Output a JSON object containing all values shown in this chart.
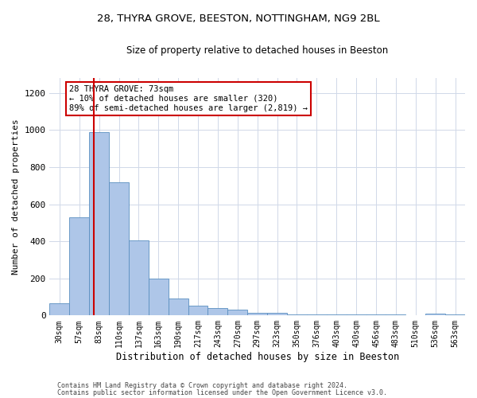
{
  "title1": "28, THYRA GROVE, BEESTON, NOTTINGHAM, NG9 2BL",
  "title2": "Size of property relative to detached houses in Beeston",
  "xlabel": "Distribution of detached houses by size in Beeston",
  "ylabel": "Number of detached properties",
  "categories": [
    "30sqm",
    "57sqm",
    "83sqm",
    "110sqm",
    "137sqm",
    "163sqm",
    "190sqm",
    "217sqm",
    "243sqm",
    "270sqm",
    "297sqm",
    "323sqm",
    "350sqm",
    "376sqm",
    "403sqm",
    "430sqm",
    "456sqm",
    "483sqm",
    "510sqm",
    "536sqm",
    "563sqm"
  ],
  "values": [
    65,
    530,
    990,
    720,
    405,
    197,
    90,
    55,
    38,
    30,
    15,
    15,
    5,
    5,
    5,
    5,
    5,
    5,
    0,
    10,
    5
  ],
  "bar_color": "#aec6e8",
  "bar_edge_color": "#5a8fc0",
  "vline_color": "#cc0000",
  "vline_x_index": 1.73,
  "annotation_text": "28 THYRA GROVE: 73sqm\n← 10% of detached houses are smaller (320)\n89% of semi-detached houses are larger (2,819) →",
  "annotation_box_color": "#ffffff",
  "annotation_box_edge": "#cc0000",
  "ylim": [
    0,
    1280
  ],
  "yticks": [
    0,
    200,
    400,
    600,
    800,
    1000,
    1200
  ],
  "footer1": "Contains HM Land Registry data © Crown copyright and database right 2024.",
  "footer2": "Contains public sector information licensed under the Open Government Licence v3.0.",
  "bg_color": "#ffffff",
  "grid_color": "#d0d8e8",
  "title1_fontsize": 9.5,
  "title2_fontsize": 8.5,
  "xlabel_fontsize": 8.5,
  "ylabel_fontsize": 8,
  "tick_fontsize": 7,
  "footer_fontsize": 6,
  "ann_fontsize": 7.5
}
